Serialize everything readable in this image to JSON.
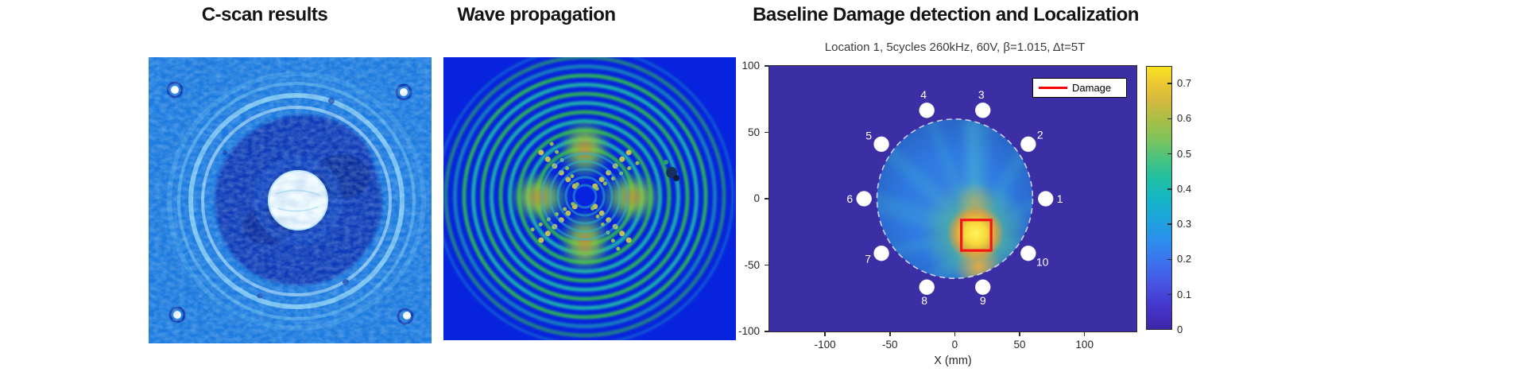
{
  "figure": {
    "panel_titles": {
      "cscan": "C-scan results",
      "wave": "Wave propagation",
      "localization": "Baseline Damage detection and Localization"
    }
  },
  "chart_data": {
    "type": "heatmap",
    "title": "Location 1, 5cycles 260kHz, 60V, β=1.015,  Δt=5T",
    "xlabel": "X (mm)",
    "ylabel": "",
    "xlim": [
      -143,
      140
    ],
    "ylim": [
      -100,
      100
    ],
    "xticks": [
      -100,
      -50,
      0,
      50,
      100
    ],
    "yticks": [
      100,
      50,
      0,
      -50,
      -100
    ],
    "grid": false,
    "colormap": "parula",
    "colorbar": {
      "min": 0,
      "max": 0.75,
      "ticks": [
        0,
        0.1,
        0.2,
        0.3,
        0.4,
        0.5,
        0.6,
        0.7
      ]
    },
    "legend": {
      "position": "northeast",
      "entries": [
        {
          "label": "Damage",
          "color": "#ff0000"
        }
      ]
    },
    "sensors": [
      {
        "id": 1,
        "x_mm": 70,
        "y_mm": 0
      },
      {
        "id": 2,
        "x_mm": 56.6,
        "y_mm": 41.1
      },
      {
        "id": 3,
        "x_mm": 21.6,
        "y_mm": 66.6
      },
      {
        "id": 4,
        "x_mm": -21.6,
        "y_mm": 66.6
      },
      {
        "id": 5,
        "x_mm": -56.6,
        "y_mm": 41.1
      },
      {
        "id": 6,
        "x_mm": -70,
        "y_mm": 0
      },
      {
        "id": 7,
        "x_mm": -56.6,
        "y_mm": -41.1
      },
      {
        "id": 8,
        "x_mm": -21.6,
        "y_mm": -66.6
      },
      {
        "id": 9,
        "x_mm": 21.6,
        "y_mm": -66.6
      },
      {
        "id": 10,
        "x_mm": 56.6,
        "y_mm": -41.1
      }
    ],
    "inspection_region": {
      "shape": "dashed_circle",
      "center_mm": [
        0,
        0
      ],
      "radius_mm": 60
    },
    "damage_box_mm": {
      "x": [
        5,
        28
      ],
      "y": [
        -39,
        -16
      ]
    },
    "peak_location_mm": [
      16,
      -26
    ],
    "peak_damage_index": 0.75
  }
}
